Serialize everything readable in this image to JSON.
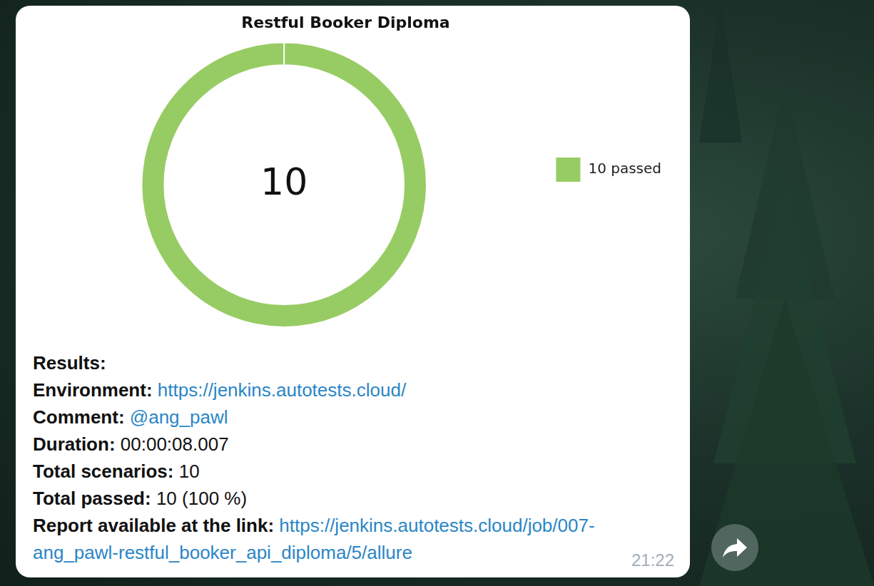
{
  "chart_data": {
    "type": "doughnut",
    "title": "Restful Booker Diploma",
    "categories": [
      "10 passed"
    ],
    "values": [
      10
    ],
    "color": "#97cc64",
    "annotation": "10",
    "legend": "right"
  },
  "message": {
    "heading": "Results:",
    "fields": [
      {
        "label": "Environment:",
        "value": "https://jenkins.autotests.cloud/",
        "link": true
      },
      {
        "label": "Comment:",
        "value": "@ang_pawl",
        "link": true
      },
      {
        "label": "Duration:",
        "value": "00:00:08.007",
        "link": false
      },
      {
        "label": "Total scenarios:",
        "value": "10",
        "link": false
      },
      {
        "label": "Total passed:",
        "value": "10 (100 %)",
        "link": false
      },
      {
        "label": "Report available at the link:",
        "value": "https://jenkins.autotests.cloud/job/007-ang_pawl-restful_booker_api_diploma/5/allure",
        "link": true
      }
    ],
    "time": "21:22"
  }
}
